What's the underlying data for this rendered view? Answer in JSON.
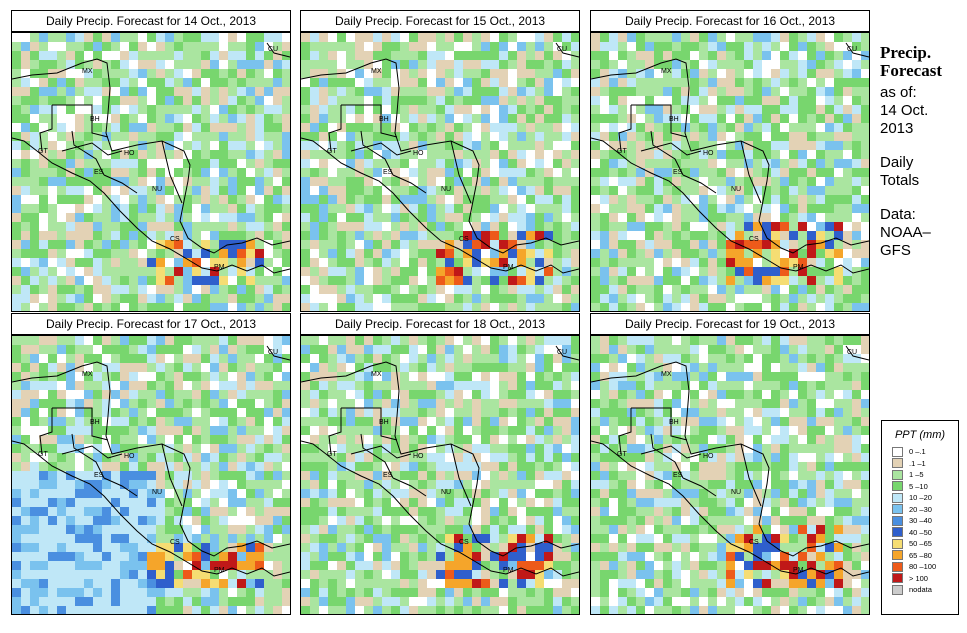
{
  "panels": [
    {
      "title": "Daily Precip. Forecast for  14 Oct., 2013",
      "seed": 1
    },
    {
      "title": "Daily Precip. Forecast for  15 Oct., 2013",
      "seed": 2
    },
    {
      "title": "Daily Precip. Forecast for  16 Oct., 2013",
      "seed": 3
    },
    {
      "title": "Daily Precip. Forecast for  17 Oct., 2013",
      "seed": 4
    },
    {
      "title": "Daily Precip. Forecast for  18 Oct., 2013",
      "seed": 5
    },
    {
      "title": "Daily Precip. Forecast for  19 Oct., 2013",
      "seed": 6
    }
  ],
  "country_labels": [
    "MX",
    "BH",
    "GT",
    "HO",
    "ES",
    "NU",
    "CS",
    "PM",
    "CU"
  ],
  "sidebar": {
    "title_line1": "Precip.",
    "title_line2": "Forecast",
    "asof_line1": "as of:",
    "asof_line2": "14 Oct.",
    "asof_line3": "2013",
    "daily_line1": "Daily",
    "daily_line2": "Totals",
    "data_line1": "Data:",
    "data_line2": "NOAA–",
    "data_line3": "GFS"
  },
  "legend": {
    "title": "PPT (mm)",
    "items": [
      {
        "label": "0 –.1",
        "color": "#ffffff"
      },
      {
        "label": ".1 –1",
        "color": "#e3d2b5"
      },
      {
        "label": "1 –5",
        "color": "#aae5a0"
      },
      {
        "label": "5 –10",
        "color": "#78d66e"
      },
      {
        "label": "10 –20",
        "color": "#bfe7f7"
      },
      {
        "label": "20 –30",
        "color": "#7ac2ee"
      },
      {
        "label": "30 –40",
        "color": "#4a8fe0"
      },
      {
        "label": "40 –50",
        "color": "#2f5fcc"
      },
      {
        "label": "50 –65",
        "color": "#f5dd73"
      },
      {
        "label": "65 –80",
        "color": "#f5a52a"
      },
      {
        "label": "80 –100",
        "color": "#ed5a1a"
      },
      {
        "label": "> 100",
        "color": "#c01818"
      },
      {
        "label": "nodata",
        "color": "#cccccc"
      }
    ]
  }
}
